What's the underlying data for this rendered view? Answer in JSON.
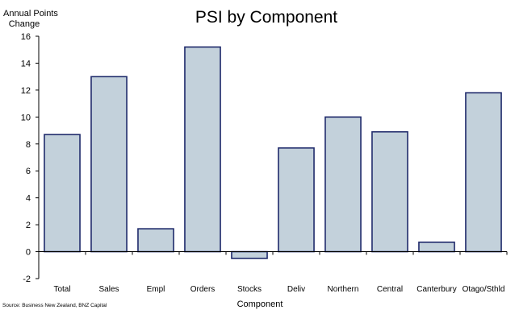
{
  "chart_data": {
    "type": "bar",
    "title": "PSI by Component",
    "ylabel": [
      "Annual Points",
      "Change"
    ],
    "xlabel": "Component",
    "source": "Source: Business New Zealand, BNZ Capital",
    "categories": [
      "Total",
      "Sales",
      "Empl",
      "Orders",
      "Stocks",
      "Deliv",
      "Northern",
      "Central",
      "Canterbury",
      "Otago/Sthld"
    ],
    "values": [
      8.7,
      13.0,
      1.7,
      15.2,
      -0.5,
      7.7,
      10.0,
      8.9,
      0.7,
      11.8
    ],
    "ylim": [
      -2,
      16
    ],
    "yticks": [
      -2,
      0,
      2,
      4,
      6,
      8,
      10,
      12,
      14,
      16
    ],
    "grid": false,
    "legend": "none",
    "colors": {
      "bar_fill": "#c3d1db",
      "bar_stroke": "#1f2a6b",
      "axis": "#000000"
    }
  }
}
